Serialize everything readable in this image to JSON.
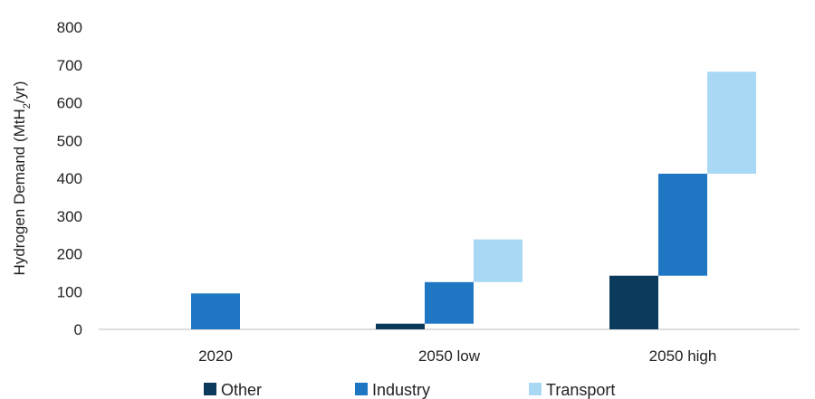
{
  "chart_data": {
    "type": "bar",
    "subtype": "waterfall-stacked",
    "categories": [
      "2020",
      "2050 low",
      "2050 high"
    ],
    "series": [
      {
        "name": "Other",
        "color": "#0b3a5c",
        "values": [
          0,
          15,
          142
        ]
      },
      {
        "name": "Industry",
        "color": "#1f77c3",
        "values": [
          95,
          110,
          270
        ]
      },
      {
        "name": "Transport",
        "color": "#a9d8f5",
        "values": [
          0,
          113,
          270
        ]
      }
    ],
    "ylabel_parts": {
      "pre": "Hydrogen Demand (MtH",
      "sub": "2",
      "post": "/yr)"
    },
    "ylim": [
      0,
      800
    ],
    "yticks": [
      0,
      100,
      200,
      300,
      400,
      500,
      600,
      700,
      800
    ],
    "grid": false,
    "legend_position": "bottom"
  }
}
